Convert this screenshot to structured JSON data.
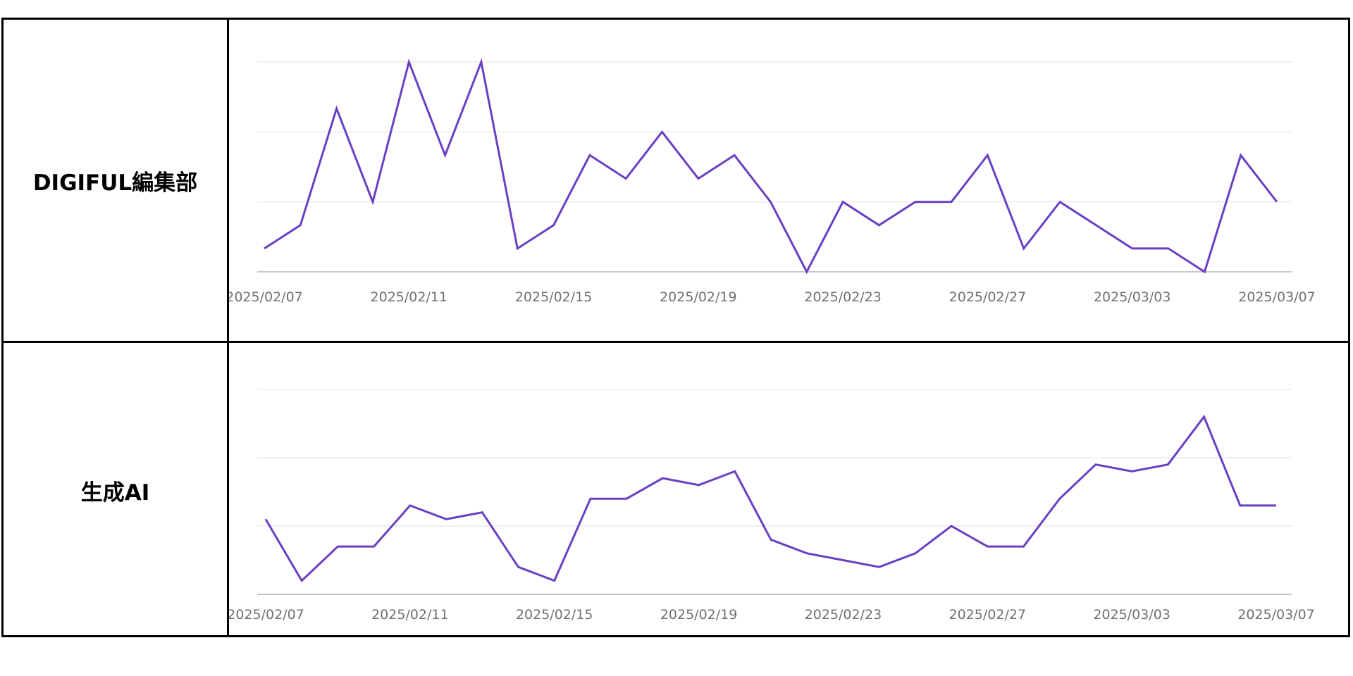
{
  "rows": [
    {
      "label": "DIGIFUL編集部"
    },
    {
      "label": "生成AI"
    }
  ],
  "colors": {
    "line": "#6a3fc4",
    "grid": "#ececec",
    "baseline": "#c8c8c8",
    "tick": "#707070",
    "border": "#000000"
  },
  "chart_data": [
    {
      "type": "line",
      "x": [
        "2025/02/07",
        "2025/02/08",
        "2025/02/09",
        "2025/02/10",
        "2025/02/11",
        "2025/02/12",
        "2025/02/13",
        "2025/02/14",
        "2025/02/15",
        "2025/02/16",
        "2025/02/17",
        "2025/02/18",
        "2025/02/19",
        "2025/02/20",
        "2025/02/21",
        "2025/02/22",
        "2025/02/23",
        "2025/02/24",
        "2025/02/25",
        "2025/02/26",
        "2025/02/27",
        "2025/02/28",
        "2025/03/01",
        "2025/03/02",
        "2025/03/03",
        "2025/03/04",
        "2025/03/05",
        "2025/03/06",
        "2025/03/07"
      ],
      "tick_labels": [
        "2025/02/07",
        "2025/02/11",
        "2025/02/15",
        "2025/02/19",
        "2025/02/23",
        "2025/02/27",
        "2025/03/03",
        "2025/03/07"
      ],
      "series": [
        {
          "values": [
            1,
            2,
            7,
            3,
            9,
            5,
            9,
            1,
            2,
            5,
            4,
            6,
            4,
            5,
            3,
            0,
            3,
            2,
            3,
            3,
            5,
            1,
            3,
            2,
            1,
            1,
            0,
            5,
            3
          ]
        }
      ],
      "ylim": [
        0,
        9
      ],
      "gridlines": 4,
      "grid": true
    },
    {
      "type": "line",
      "x": [
        "2025/02/07",
        "2025/02/08",
        "2025/02/09",
        "2025/02/10",
        "2025/02/11",
        "2025/02/12",
        "2025/02/13",
        "2025/02/14",
        "2025/02/15",
        "2025/02/16",
        "2025/02/17",
        "2025/02/18",
        "2025/02/19",
        "2025/02/20",
        "2025/02/21",
        "2025/02/22",
        "2025/02/23",
        "2025/02/24",
        "2025/02/25",
        "2025/02/26",
        "2025/02/27",
        "2025/02/28",
        "2025/03/01",
        "2025/03/02",
        "2025/03/03",
        "2025/03/04",
        "2025/03/05",
        "2025/03/06",
        "2025/03/07"
      ],
      "tick_labels": [
        "2025/02/07",
        "2025/02/11",
        "2025/02/15",
        "2025/02/19",
        "2025/02/23",
        "2025/02/27",
        "2025/03/03",
        "2025/03/07"
      ],
      "series": [
        {
          "values": [
            11,
            2,
            7,
            7,
            13,
            11,
            12,
            4,
            2,
            14,
            14,
            17,
            16,
            18,
            8,
            6,
            5,
            4,
            6,
            10,
            7,
            7,
            14,
            19,
            18,
            19,
            26,
            13,
            13
          ]
        }
      ],
      "ylim": [
        0,
        30
      ],
      "gridlines": 4,
      "grid": true
    }
  ]
}
